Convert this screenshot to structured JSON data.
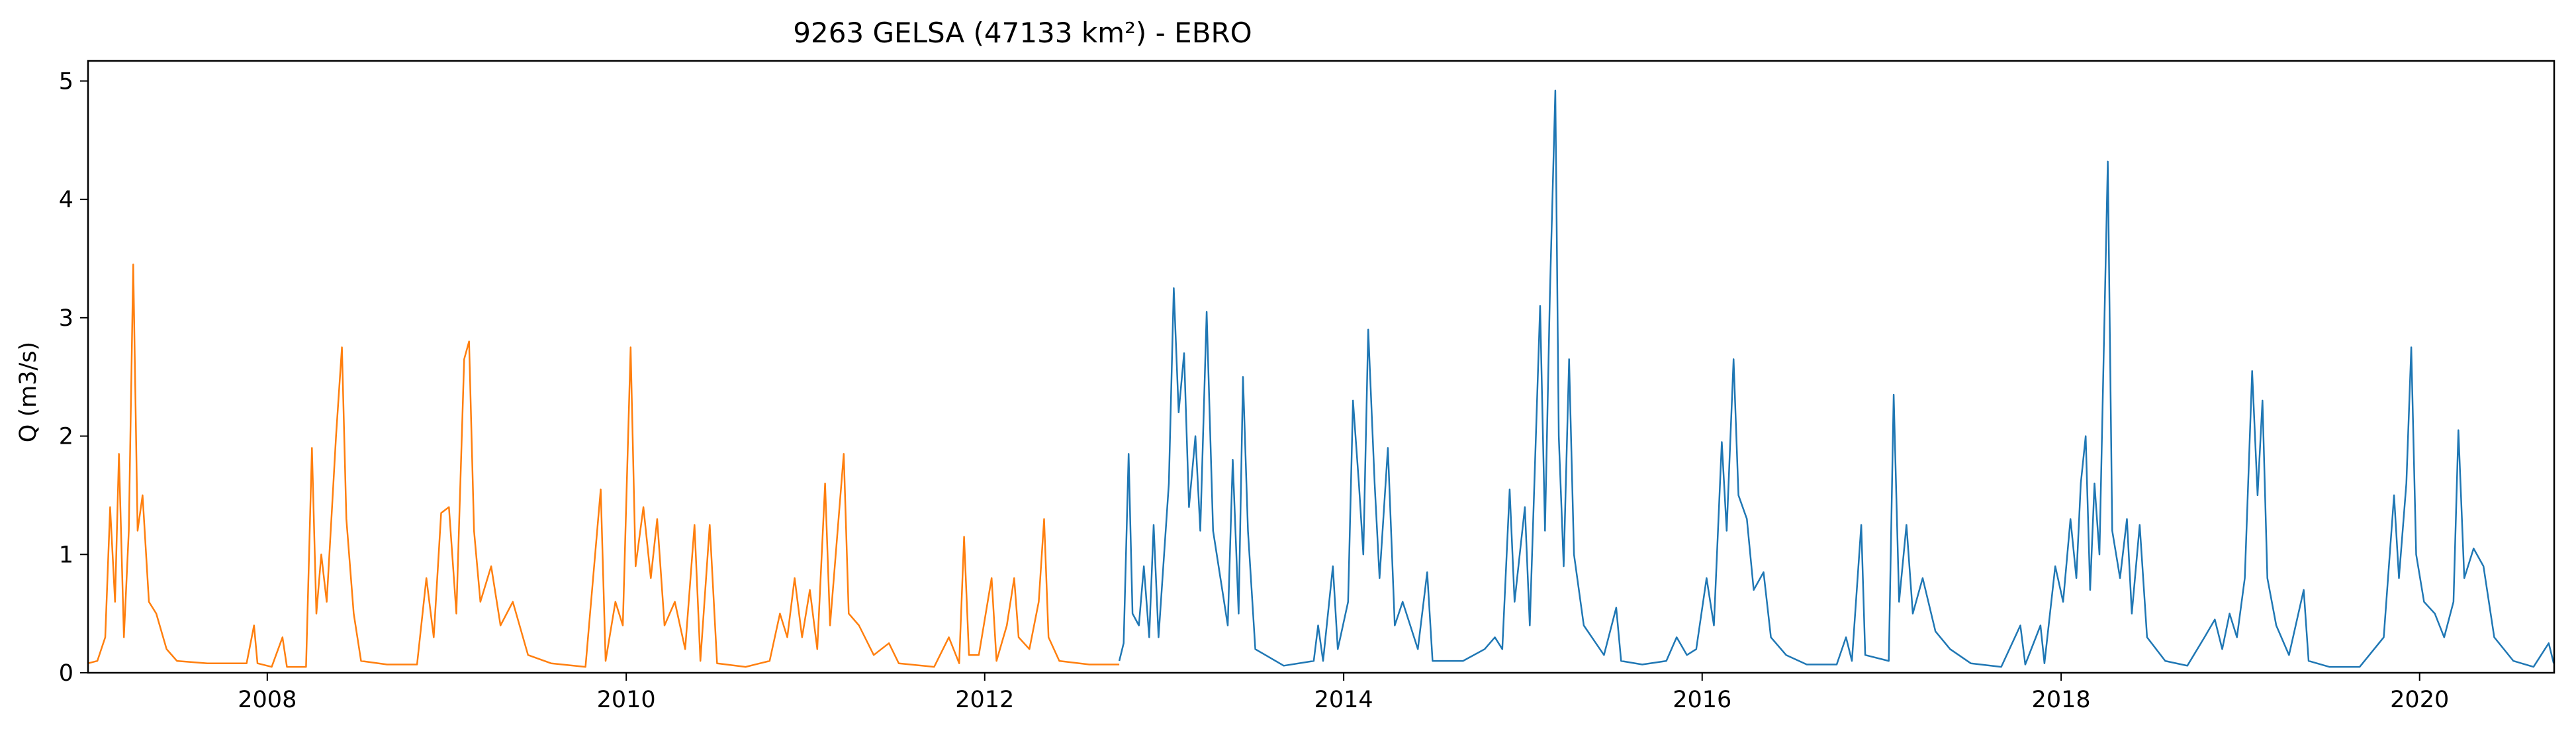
{
  "chart_data": {
    "type": "line",
    "title": "9263 GELSA (47133 km²) - EBRO",
    "xlabel": "",
    "ylabel": "Q (m3/s)",
    "xlim": [
      "2007-01-01",
      "2020-10-01"
    ],
    "ylim": [
      0,
      5.17
    ],
    "x_ticks": [
      "2008",
      "2010",
      "2012",
      "2014",
      "2016",
      "2018",
      "2020"
    ],
    "y_ticks": [
      "0",
      "1",
      "2",
      "3",
      "4",
      "5"
    ],
    "grid": false,
    "legend": "none",
    "series": [
      {
        "color": "#ff7f0e",
        "points": [
          [
            "2007-01-01",
            0.08
          ],
          [
            "2007-01-20",
            0.1
          ],
          [
            "2007-02-05",
            0.3
          ],
          [
            "2007-02-15",
            1.4
          ],
          [
            "2007-02-25",
            0.6
          ],
          [
            "2007-03-05",
            1.85
          ],
          [
            "2007-03-15",
            0.3
          ],
          [
            "2007-03-25",
            1.2
          ],
          [
            "2007-04-03",
            3.45
          ],
          [
            "2007-04-12",
            1.2
          ],
          [
            "2007-04-22",
            1.5
          ],
          [
            "2007-05-05",
            0.6
          ],
          [
            "2007-05-20",
            0.5
          ],
          [
            "2007-06-10",
            0.2
          ],
          [
            "2007-07-01",
            0.1
          ],
          [
            "2007-09-01",
            0.08
          ],
          [
            "2007-11-20",
            0.08
          ],
          [
            "2007-12-05",
            0.4
          ],
          [
            "2007-12-12",
            0.08
          ],
          [
            "2008-01-10",
            0.05
          ],
          [
            "2008-02-01",
            0.3
          ],
          [
            "2008-02-10",
            0.05
          ],
          [
            "2008-03-20",
            0.05
          ],
          [
            "2008-04-01",
            1.9
          ],
          [
            "2008-04-10",
            0.5
          ],
          [
            "2008-04-20",
            1.0
          ],
          [
            "2008-05-01",
            0.6
          ],
          [
            "2008-05-12",
            1.4
          ],
          [
            "2008-05-20",
            2.0
          ],
          [
            "2008-06-01",
            2.75
          ],
          [
            "2008-06-10",
            1.3
          ],
          [
            "2008-06-25",
            0.5
          ],
          [
            "2008-07-10",
            0.1
          ],
          [
            "2008-09-01",
            0.07
          ],
          [
            "2008-11-01",
            0.07
          ],
          [
            "2008-11-20",
            0.8
          ],
          [
            "2008-12-05",
            0.3
          ],
          [
            "2008-12-20",
            1.35
          ],
          [
            "2009-01-05",
            1.4
          ],
          [
            "2009-01-20",
            0.5
          ],
          [
            "2009-02-05",
            2.65
          ],
          [
            "2009-02-15",
            2.8
          ],
          [
            "2009-02-25",
            1.2
          ],
          [
            "2009-03-10",
            0.6
          ],
          [
            "2009-04-01",
            0.9
          ],
          [
            "2009-04-20",
            0.4
          ],
          [
            "2009-05-15",
            0.6
          ],
          [
            "2009-06-15",
            0.15
          ],
          [
            "2009-08-01",
            0.08
          ],
          [
            "2009-10-10",
            0.05
          ],
          [
            "2009-11-10",
            1.55
          ],
          [
            "2009-11-20",
            0.1
          ],
          [
            "2009-12-10",
            0.6
          ],
          [
            "2009-12-25",
            0.4
          ],
          [
            "2010-01-10",
            2.75
          ],
          [
            "2010-01-20",
            0.9
          ],
          [
            "2010-02-05",
            1.4
          ],
          [
            "2010-02-20",
            0.8
          ],
          [
            "2010-03-05",
            1.3
          ],
          [
            "2010-03-20",
            0.4
          ],
          [
            "2010-04-10",
            0.6
          ],
          [
            "2010-05-01",
            0.2
          ],
          [
            "2010-05-20",
            1.25
          ],
          [
            "2010-06-01",
            0.1
          ],
          [
            "2010-06-20",
            1.25
          ],
          [
            "2010-07-05",
            0.08
          ],
          [
            "2010-09-01",
            0.05
          ],
          [
            "2010-10-20",
            0.1
          ],
          [
            "2010-11-10",
            0.5
          ],
          [
            "2010-11-25",
            0.3
          ],
          [
            "2010-12-10",
            0.8
          ],
          [
            "2010-12-25",
            0.3
          ],
          [
            "2011-01-10",
            0.7
          ],
          [
            "2011-01-25",
            0.2
          ],
          [
            "2011-02-10",
            1.6
          ],
          [
            "2011-02-20",
            0.4
          ],
          [
            "2011-03-20",
            1.85
          ],
          [
            "2011-03-30",
            0.5
          ],
          [
            "2011-04-20",
            0.4
          ],
          [
            "2011-05-20",
            0.15
          ],
          [
            "2011-06-20",
            0.25
          ],
          [
            "2011-07-10",
            0.08
          ],
          [
            "2011-09-20",
            0.05
          ],
          [
            "2011-10-20",
            0.3
          ],
          [
            "2011-11-10",
            0.08
          ],
          [
            "2011-11-20",
            1.15
          ],
          [
            "2011-11-30",
            0.15
          ],
          [
            "2011-12-20",
            0.15
          ],
          [
            "2012-01-15",
            0.8
          ],
          [
            "2012-01-25",
            0.1
          ],
          [
            "2012-02-15",
            0.4
          ],
          [
            "2012-03-01",
            0.8
          ],
          [
            "2012-03-10",
            0.3
          ],
          [
            "2012-04-01",
            0.2
          ],
          [
            "2012-04-20",
            0.6
          ],
          [
            "2012-05-01",
            1.3
          ],
          [
            "2012-05-10",
            0.3
          ],
          [
            "2012-06-01",
            0.1
          ],
          [
            "2012-08-01",
            0.07
          ],
          [
            "2012-10-01",
            0.07
          ]
        ]
      },
      {
        "color": "#1f77b4",
        "points": [
          [
            "2012-10-01",
            0.1
          ],
          [
            "2012-10-10",
            0.25
          ],
          [
            "2012-10-20",
            1.85
          ],
          [
            "2012-10-28",
            0.5
          ],
          [
            "2012-11-10",
            0.4
          ],
          [
            "2012-11-20",
            0.9
          ],
          [
            "2012-12-01",
            0.3
          ],
          [
            "2012-12-10",
            1.25
          ],
          [
            "2012-12-20",
            0.3
          ],
          [
            "2013-01-10",
            1.6
          ],
          [
            "2013-01-20",
            3.25
          ],
          [
            "2013-01-30",
            2.2
          ],
          [
            "2013-02-10",
            2.7
          ],
          [
            "2013-02-20",
            1.4
          ],
          [
            "2013-03-05",
            2.0
          ],
          [
            "2013-03-15",
            1.2
          ],
          [
            "2013-03-28",
            3.05
          ],
          [
            "2013-04-10",
            1.2
          ],
          [
            "2013-04-25",
            0.8
          ],
          [
            "2013-05-10",
            0.4
          ],
          [
            "2013-05-20",
            1.8
          ],
          [
            "2013-06-01",
            0.5
          ],
          [
            "2013-06-10",
            2.5
          ],
          [
            "2013-06-20",
            1.2
          ],
          [
            "2013-07-05",
            0.2
          ],
          [
            "2013-09-01",
            0.06
          ],
          [
            "2013-11-01",
            0.1
          ],
          [
            "2013-11-10",
            0.4
          ],
          [
            "2013-11-20",
            0.1
          ],
          [
            "2013-12-10",
            0.9
          ],
          [
            "2013-12-20",
            0.2
          ],
          [
            "2014-01-10",
            0.6
          ],
          [
            "2014-01-20",
            2.3
          ],
          [
            "2014-02-01",
            1.6
          ],
          [
            "2014-02-10",
            1.0
          ],
          [
            "2014-02-20",
            2.9
          ],
          [
            "2014-03-05",
            1.6
          ],
          [
            "2014-03-15",
            0.8
          ],
          [
            "2014-04-01",
            1.9
          ],
          [
            "2014-04-15",
            0.4
          ],
          [
            "2014-05-01",
            0.6
          ],
          [
            "2014-06-01",
            0.2
          ],
          [
            "2014-06-20",
            0.85
          ],
          [
            "2014-07-01",
            0.1
          ],
          [
            "2014-09-01",
            0.1
          ],
          [
            "2014-10-15",
            0.2
          ],
          [
            "2014-11-05",
            0.3
          ],
          [
            "2014-11-20",
            0.2
          ],
          [
            "2014-12-05",
            1.55
          ],
          [
            "2014-12-15",
            0.6
          ],
          [
            "2015-01-05",
            1.4
          ],
          [
            "2015-01-15",
            0.4
          ],
          [
            "2015-02-05",
            3.1
          ],
          [
            "2015-02-15",
            1.2
          ],
          [
            "2015-02-25",
            3.2
          ],
          [
            "2015-03-08",
            4.92
          ],
          [
            "2015-03-15",
            2.0
          ],
          [
            "2015-03-25",
            0.9
          ],
          [
            "2015-04-05",
            2.65
          ],
          [
            "2015-04-15",
            1.0
          ],
          [
            "2015-05-05",
            0.4
          ],
          [
            "2015-06-15",
            0.15
          ],
          [
            "2015-07-10",
            0.55
          ],
          [
            "2015-07-20",
            0.1
          ],
          [
            "2015-09-01",
            0.07
          ],
          [
            "2015-10-20",
            0.1
          ],
          [
            "2015-11-10",
            0.3
          ],
          [
            "2015-12-01",
            0.15
          ],
          [
            "2015-12-20",
            0.2
          ],
          [
            "2016-01-10",
            0.8
          ],
          [
            "2016-01-25",
            0.4
          ],
          [
            "2016-02-10",
            1.95
          ],
          [
            "2016-02-20",
            1.2
          ],
          [
            "2016-03-05",
            2.65
          ],
          [
            "2016-03-15",
            1.5
          ],
          [
            "2016-04-01",
            1.3
          ],
          [
            "2016-04-15",
            0.7
          ],
          [
            "2016-05-05",
            0.85
          ],
          [
            "2016-05-20",
            0.3
          ],
          [
            "2016-06-20",
            0.15
          ],
          [
            "2016-08-01",
            0.07
          ],
          [
            "2016-10-01",
            0.07
          ],
          [
            "2016-10-20",
            0.3
          ],
          [
            "2016-11-01",
            0.1
          ],
          [
            "2016-11-20",
            1.25
          ],
          [
            "2016-11-28",
            0.15
          ],
          [
            "2017-01-15",
            0.1
          ],
          [
            "2017-01-25",
            2.35
          ],
          [
            "2017-02-05",
            0.6
          ],
          [
            "2017-02-20",
            1.25
          ],
          [
            "2017-03-05",
            0.5
          ],
          [
            "2017-03-25",
            0.8
          ],
          [
            "2017-04-20",
            0.35
          ],
          [
            "2017-05-20",
            0.2
          ],
          [
            "2017-07-01",
            0.08
          ],
          [
            "2017-09-01",
            0.05
          ],
          [
            "2017-10-10",
            0.4
          ],
          [
            "2017-10-20",
            0.07
          ],
          [
            "2017-11-20",
            0.4
          ],
          [
            "2017-11-28",
            0.08
          ],
          [
            "2017-12-20",
            0.9
          ],
          [
            "2018-01-05",
            0.6
          ],
          [
            "2018-01-20",
            1.3
          ],
          [
            "2018-02-01",
            0.8
          ],
          [
            "2018-02-10",
            1.6
          ],
          [
            "2018-02-20",
            2.0
          ],
          [
            "2018-03-01",
            0.7
          ],
          [
            "2018-03-10",
            1.6
          ],
          [
            "2018-03-20",
            1.0
          ],
          [
            "2018-04-06",
            4.32
          ],
          [
            "2018-04-15",
            1.2
          ],
          [
            "2018-05-01",
            0.8
          ],
          [
            "2018-05-15",
            1.3
          ],
          [
            "2018-05-25",
            0.5
          ],
          [
            "2018-06-10",
            1.25
          ],
          [
            "2018-06-25",
            0.3
          ],
          [
            "2018-08-01",
            0.1
          ],
          [
            "2018-09-15",
            0.06
          ],
          [
            "2018-10-20",
            0.3
          ],
          [
            "2018-11-10",
            0.45
          ],
          [
            "2018-11-25",
            0.2
          ],
          [
            "2018-12-10",
            0.5
          ],
          [
            "2018-12-25",
            0.3
          ],
          [
            "2019-01-10",
            0.8
          ],
          [
            "2019-01-25",
            2.55
          ],
          [
            "2019-02-05",
            1.5
          ],
          [
            "2019-02-15",
            2.3
          ],
          [
            "2019-02-25",
            0.8
          ],
          [
            "2019-03-15",
            0.4
          ],
          [
            "2019-04-10",
            0.15
          ],
          [
            "2019-05-10",
            0.7
          ],
          [
            "2019-05-20",
            0.1
          ],
          [
            "2019-07-01",
            0.05
          ],
          [
            "2019-09-01",
            0.05
          ],
          [
            "2019-10-20",
            0.3
          ],
          [
            "2019-11-10",
            1.5
          ],
          [
            "2019-11-20",
            0.8
          ],
          [
            "2019-12-05",
            1.6
          ],
          [
            "2019-12-15",
            2.75
          ],
          [
            "2019-12-25",
            1.0
          ],
          [
            "2020-01-10",
            0.6
          ],
          [
            "2020-02-01",
            0.5
          ],
          [
            "2020-02-20",
            0.3
          ],
          [
            "2020-03-10",
            0.6
          ],
          [
            "2020-03-20",
            2.05
          ],
          [
            "2020-04-01",
            0.8
          ],
          [
            "2020-04-20",
            1.05
          ],
          [
            "2020-05-10",
            0.9
          ],
          [
            "2020-06-01",
            0.3
          ],
          [
            "2020-07-10",
            0.1
          ],
          [
            "2020-08-20",
            0.05
          ],
          [
            "2020-09-20",
            0.25
          ],
          [
            "2020-09-30",
            0.08
          ]
        ]
      }
    ]
  }
}
